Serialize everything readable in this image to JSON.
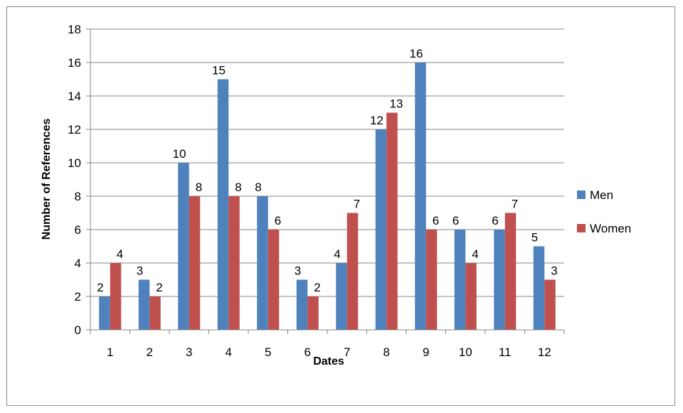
{
  "chart_data": {
    "type": "bar",
    "title": "",
    "xlabel": "Dates",
    "ylabel": "Number of References",
    "categories": [
      "1",
      "2",
      "3",
      "4",
      "5",
      "6",
      "7",
      "8",
      "9",
      "10",
      "11",
      "12"
    ],
    "series": [
      {
        "name": "Men",
        "color": "#4f81bd",
        "values": [
          2,
          3,
          10,
          15,
          8,
          3,
          4,
          12,
          16,
          6,
          6,
          5
        ]
      },
      {
        "name": "Women",
        "color": "#c0504d",
        "values": [
          4,
          2,
          8,
          8,
          6,
          2,
          7,
          13,
          6,
          4,
          7,
          3
        ]
      }
    ],
    "ylim": [
      0,
      18
    ],
    "yticks": [
      0,
      2,
      4,
      6,
      8,
      10,
      12,
      14,
      16,
      18
    ],
    "grid": true,
    "legend": "right"
  }
}
